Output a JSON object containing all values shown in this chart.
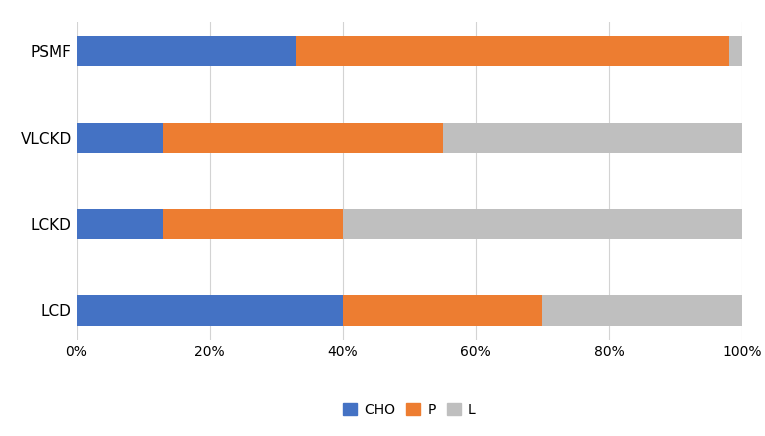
{
  "categories": [
    "PSMF",
    "VLCKD",
    "LCKD",
    "LCD"
  ],
  "CHO": [
    33,
    13,
    13,
    40
  ],
  "P": [
    65,
    42,
    27,
    30
  ],
  "L": [
    2,
    45,
    60,
    30
  ],
  "colors": {
    "CHO": "#4472C4",
    "P": "#ED7D31",
    "L": "#BFBFBF"
  },
  "xlim": [
    0,
    100
  ],
  "xticks": [
    0,
    20,
    40,
    60,
    80,
    100
  ],
  "xtick_labels": [
    "0%",
    "20%",
    "40%",
    "60%",
    "80%",
    "100%"
  ],
  "background_color": "#FFFFFF",
  "grid_color": "#D3D3D3",
  "bar_height": 0.35,
  "figsize": [
    7.65,
    4.36
  ],
  "dpi": 100,
  "ytick_fontsize": 11,
  "xtick_fontsize": 10,
  "legend_fontsize": 10
}
